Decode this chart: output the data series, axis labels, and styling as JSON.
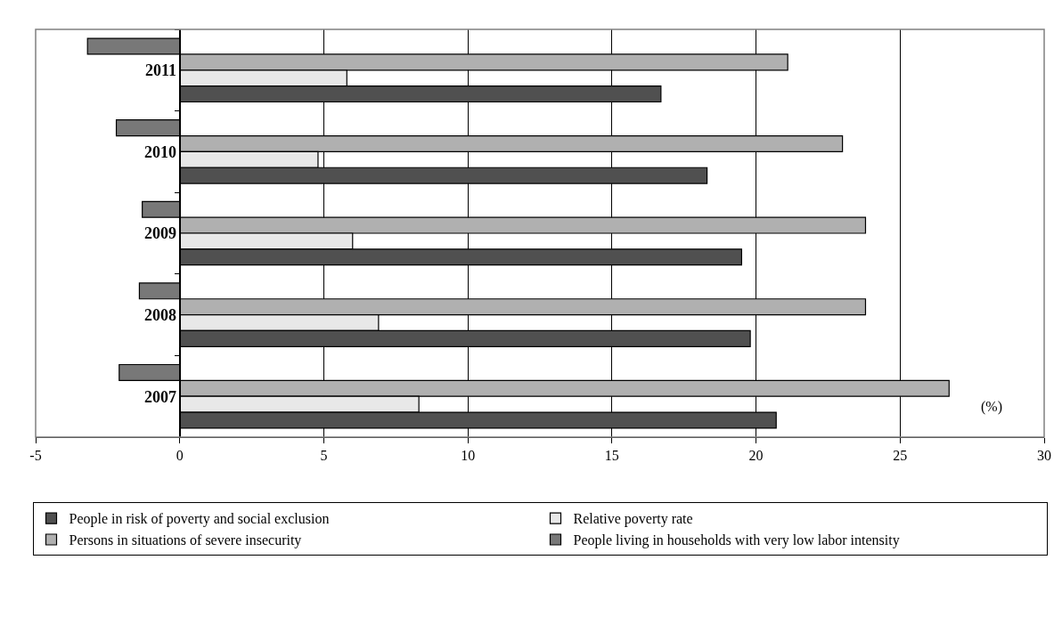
{
  "chart_data": {
    "type": "bar",
    "orientation": "horizontal",
    "categories": [
      "2011",
      "2010",
      "2009",
      "2008",
      "2007"
    ],
    "series": [
      {
        "name": "People in risk of poverty and social exclusion",
        "color": "#505050",
        "values": [
          16.7,
          18.3,
          19.5,
          19.8,
          20.7
        ]
      },
      {
        "name": "Relative poverty rate",
        "color": "#e8e8e8",
        "values": [
          5.8,
          4.8,
          6.0,
          6.9,
          8.3
        ]
      },
      {
        "name": "Persons in situations of severe insecurity",
        "color": "#b0b0b0",
        "values": [
          21.1,
          23.0,
          23.8,
          23.8,
          26.7
        ]
      },
      {
        "name": "People living in households with very low labor intensity",
        "color": "#787878",
        "values": [
          -3.2,
          -2.2,
          -1.3,
          -1.4,
          -2.1
        ]
      }
    ],
    "xlim": [
      -5,
      30
    ],
    "xticks": [
      -5,
      0,
      5,
      10,
      15,
      20,
      25,
      30
    ],
    "annotations": [
      "(%)"
    ],
    "grid": "x",
    "legend": "bottom"
  }
}
